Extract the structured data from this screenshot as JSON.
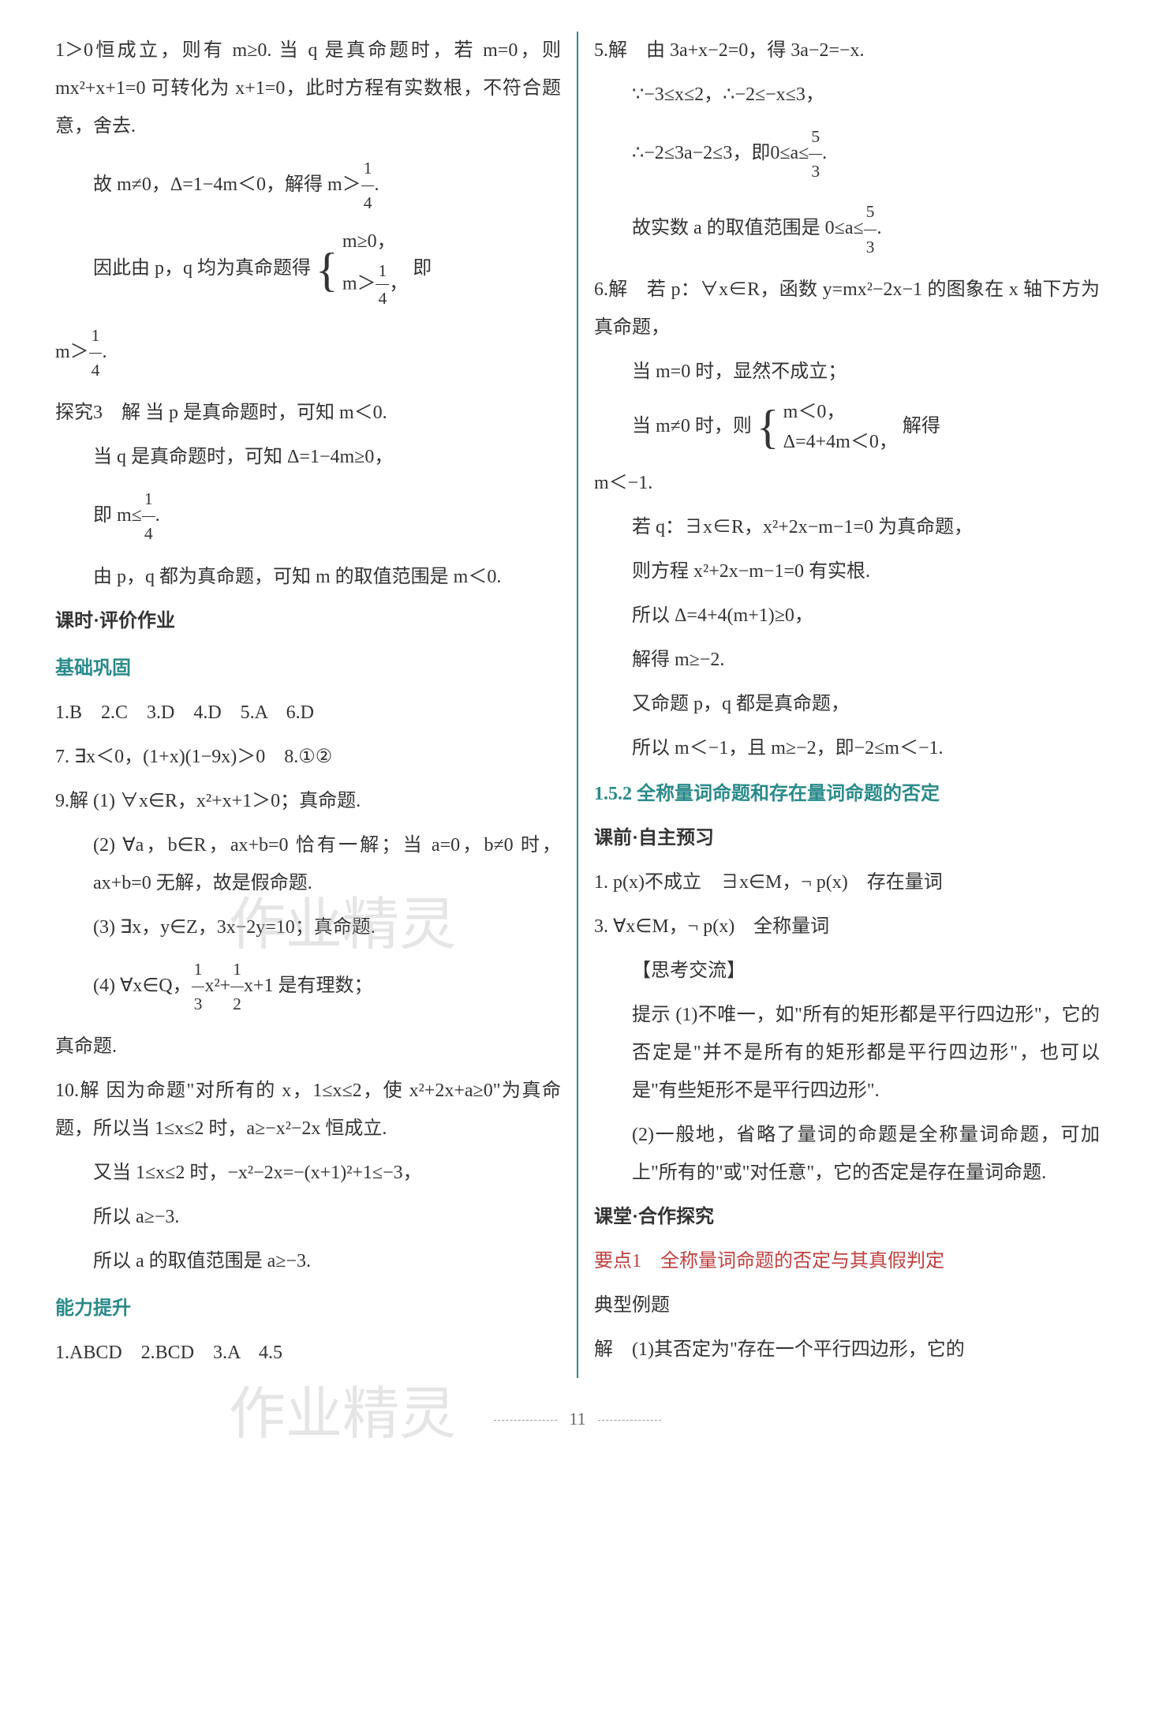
{
  "left_column": {
    "p1": "1＞0恒成立，则有 m≥0. 当 q 是真命题时，若 m=0，则 mx²+x+1=0 可转化为 x+1=0，此时方程有实数根，不符合题意，舍去.",
    "p2_prefix": "故 m≠0，Δ=1−4m＜0，解得 m＞",
    "p3_prefix": "因此由 p，q 均为真命题得",
    "p3_brace_line1": "m≥0，",
    "p3_brace_line2_prefix": "m＞",
    "p3_suffix": "即",
    "p4_prefix": "m＞",
    "explore3_label": "探究3",
    "explore3_p1": "解 当 p 是真命题时，可知 m＜0.",
    "explore3_p2": "当 q 是真命题时，可知 Δ=1−4m≥0，",
    "explore3_p3_prefix": "即 m≤",
    "explore3_p4": "由 p，q 都为真命题，可知 m 的取值范围是 m＜0.",
    "heading1": "课时·评价作业",
    "heading2": "基础巩固",
    "answers1": "1.B　2.C　3.D　4.D　5.A　6.D",
    "q7": "7. ∃x＜0，(1+x)(1−9x)＞0　8.①②",
    "q9_label": "9.解",
    "q9_1": "(1) ∀x∈R，x²+x+1＞0；真命题.",
    "q9_2": "(2) ∀a，b∈R，ax+b=0 恰有一解；当 a=0，b≠0 时，ax+b=0 无解，故是假命题.",
    "q9_3": "(3) ∃x，y∈Z，3x−2y=10；真命题.",
    "q9_4_prefix": "(4) ∀x∈Q，",
    "q9_4_suffix": "x²+",
    "q9_4_suffix2": "x+1 是有理数；",
    "q9_5": "真命题.",
    "q10_label": "10.解",
    "q10_p1": "因为命题\"对所有的 x，1≤x≤2，使 x²+2x+a≥0\"为真命题，所以当 1≤x≤2 时，a≥−x²−2x 恒成立.",
    "q10_p2": "又当 1≤x≤2 时，−x²−2x=−(x+1)²+1≤−3，",
    "q10_p3": "所以 a≥−3.",
    "q10_p4": "所以 a 的取值范围是 a≥−3.",
    "heading3": "能力提升",
    "answers2": "1.ABCD　2.BCD　3.A　4.5"
  },
  "right_column": {
    "q5_label": "5.解",
    "q5_p1": "由 3a+x−2=0，得 3a−2=−x.",
    "q5_p2": "∵−3≤x≤2，∴−2≤−x≤3，",
    "q5_p3_prefix": "∴−2≤3a−2≤3，即0≤a≤",
    "q5_p4_prefix": "故实数 a 的取值范围是 0≤a≤",
    "q6_label": "6.解",
    "q6_p1": "若 p：∀x∈R，函数 y=mx²−2x−1 的图象在 x 轴下方为真命题，",
    "q6_p2": "当 m=0 时，显然不成立；",
    "q6_p3_prefix": "当 m≠0 时，则",
    "q6_p3_brace1": "m＜0，",
    "q6_p3_brace2": "Δ=4+4m＜0，",
    "q6_p3_suffix": "解得",
    "q6_p4": "m＜−1.",
    "q6_p5": "若 q：∃x∈R，x²+2x−m−1=0 为真命题，",
    "q6_p6": "则方程 x²+2x−m−1=0 有实根.",
    "q6_p7": "所以 Δ=4+4(m+1)≥0，",
    "q6_p8": "解得 m≥−2.",
    "q6_p9": "又命题 p，q 都是真命题，",
    "q6_p10": "所以 m＜−1，且 m≥−2，即−2≤m＜−1.",
    "section_title": "1.5.2 全称量词命题和存在量词命题的否定",
    "heading1": "课前·自主预习",
    "preview1": "1. p(x)不成立　∃x∈M，¬ p(x)　存在量词",
    "preview3": "3. ∀x∈M，¬ p(x)　全称量词",
    "thinking_label": "【思考交流】",
    "hint_label": "提示",
    "hint1": "(1)不唯一，如\"所有的矩形都是平行四边形\"，它的否定是\"并不是所有的矩形都是平行四边形\"，也可以是\"有些矩形不是平行四边形\".",
    "hint2": "(2)一般地，省略了量词的命题是全称量词命题，可加上\"所有的\"或\"对任意\"，它的否定是存在量词命题.",
    "heading2": "课堂·合作探究",
    "point1": "要点1　全称量词命题的否定与其真假判定",
    "example_label": "典型例题",
    "solution_label": "解",
    "solution1": "(1)其否定为\"存在一个平行四边形，它的"
  },
  "page_number": "11",
  "watermark_text": "作业精灵",
  "colors": {
    "heading_color": "#2a8a8a",
    "topic_color": "#c04040",
    "text_color": "#333333",
    "border_color": "#2a8a8a"
  }
}
